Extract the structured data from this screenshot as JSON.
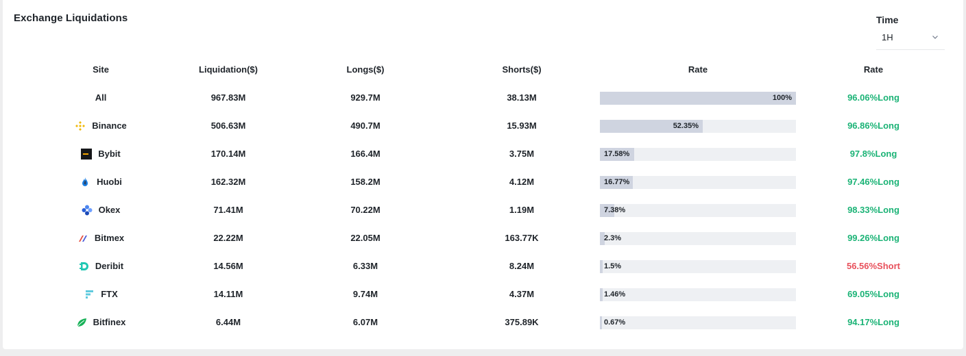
{
  "header": {
    "title": "Exchange Liquidations"
  },
  "filter": {
    "label": "Time",
    "value": "1H"
  },
  "table": {
    "columns": [
      "Site",
      "Liquidation($)",
      "Longs($)",
      "Shorts($)",
      "Rate",
      "Rate"
    ],
    "rows": [
      {
        "site": "All",
        "icon": "",
        "liquidation": "967.83M",
        "longs": "929.7M",
        "shorts": "38.13M",
        "rate_label": "100%",
        "rate_value": 100,
        "ratio": "96.06%Long",
        "ratio_type": "long"
      },
      {
        "site": "Binance",
        "icon": "binance-icon",
        "liquidation": "506.63M",
        "longs": "490.7M",
        "shorts": "15.93M",
        "rate_label": "52.35%",
        "rate_value": 52.35,
        "ratio": "96.86%Long",
        "ratio_type": "long"
      },
      {
        "site": "Bybit",
        "icon": "bybit-icon",
        "liquidation": "170.14M",
        "longs": "166.4M",
        "shorts": "3.75M",
        "rate_label": "17.58%",
        "rate_value": 17.58,
        "ratio": "97.8%Long",
        "ratio_type": "long"
      },
      {
        "site": "Huobi",
        "icon": "huobi-icon",
        "liquidation": "162.32M",
        "longs": "158.2M",
        "shorts": "4.12M",
        "rate_label": "16.77%",
        "rate_value": 16.77,
        "ratio": "97.46%Long",
        "ratio_type": "long"
      },
      {
        "site": "Okex",
        "icon": "okex-icon",
        "liquidation": "71.41M",
        "longs": "70.22M",
        "shorts": "1.19M",
        "rate_label": "7.38%",
        "rate_value": 7.38,
        "ratio": "98.33%Long",
        "ratio_type": "long"
      },
      {
        "site": "Bitmex",
        "icon": "bitmex-icon",
        "liquidation": "22.22M",
        "longs": "22.05M",
        "shorts": "163.77K",
        "rate_label": "2.3%",
        "rate_value": 2.3,
        "ratio": "99.26%Long",
        "ratio_type": "long"
      },
      {
        "site": "Deribit",
        "icon": "deribit-icon",
        "liquidation": "14.56M",
        "longs": "6.33M",
        "shorts": "8.24M",
        "rate_label": "1.5%",
        "rate_value": 1.5,
        "ratio": "56.56%Short",
        "ratio_type": "short"
      },
      {
        "site": "FTX",
        "icon": "ftx-icon",
        "liquidation": "14.11M",
        "longs": "9.74M",
        "shorts": "4.37M",
        "rate_label": "1.46%",
        "rate_value": 1.46,
        "ratio": "69.05%Long",
        "ratio_type": "long"
      },
      {
        "site": "Bitfinex",
        "icon": "bitfinex-icon",
        "liquidation": "6.44M",
        "longs": "6.07M",
        "shorts": "375.89K",
        "rate_label": "0.67%",
        "rate_value": 0.67,
        "ratio": "94.17%Long",
        "ratio_type": "long"
      }
    ]
  },
  "colors": {
    "long": "#1bb376",
    "short": "#e8505b",
    "bar_fill": "#cfd4e0",
    "bar_track": "#eef0f3"
  }
}
